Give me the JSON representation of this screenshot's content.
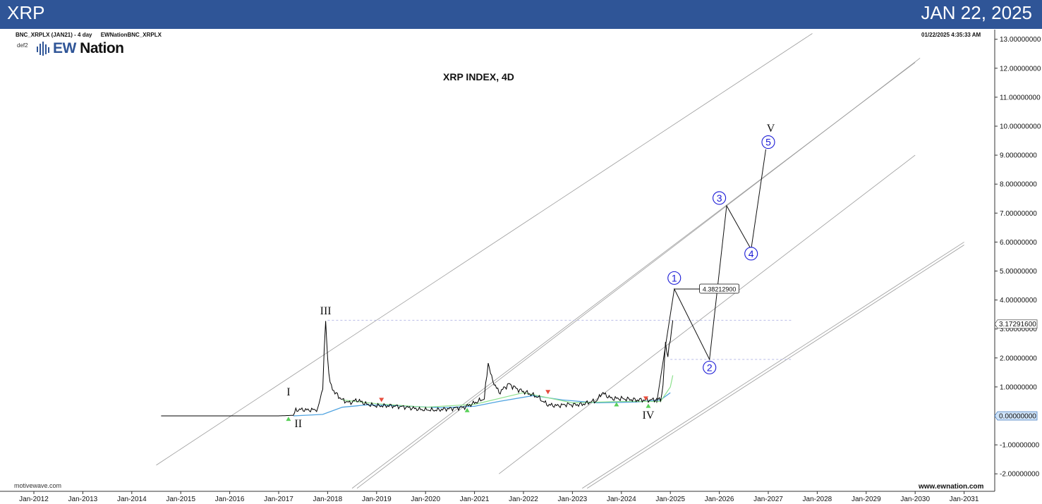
{
  "banner": {
    "symbol": "XRP",
    "date": "JAN 22, 2025",
    "color": "#2f5597"
  },
  "header": {
    "symbol_line": "BNC_XRPLX (JAN21) - 4 day",
    "source": "EWNationBNC_XRPLX",
    "def": "def2",
    "timestamp": "01/22/2025 4:35:33 AM",
    "logo_text": "EW",
    "logo_text2": "Nation"
  },
  "watermark": {
    "left": "motivewave.com",
    "right": "www.ewnation.com"
  },
  "chart_data": {
    "type": "line",
    "title": "XRP INDEX, 4D",
    "ylim": [
      -2.5,
      13.2
    ],
    "y_ticks": [
      "13.00000000",
      "12.00000000",
      "11.00000000",
      "10.00000000",
      "9.00000000",
      "8.00000000",
      "7.00000000",
      "6.00000000",
      "5.00000000",
      "4.00000000",
      "3.00000000",
      "2.00000000",
      "1.00000000",
      "0.00000000",
      "-1.00000000",
      "-2.00000000"
    ],
    "y_tick_values": [
      13,
      12,
      11,
      10,
      9,
      8,
      7,
      6,
      5,
      4,
      3,
      2,
      1,
      0,
      -1,
      -2
    ],
    "x_ticks": [
      "Jan-2012",
      "Jan-2013",
      "Jan-2014",
      "Jan-2015",
      "Jan-2016",
      "Jan-2017",
      "Jan-2018",
      "Jan-2019",
      "Jan-2020",
      "Jan-2021",
      "Jan-2022",
      "Jan-2023",
      "Jan-2024",
      "Jan-2025",
      "Jan-2026",
      "Jan-2027",
      "Jan-2028",
      "Jan-2029",
      "Jan-2030",
      "Jan-2031"
    ],
    "x_tick_years": [
      2012,
      2013,
      2014,
      2015,
      2016,
      2017,
      2018,
      2019,
      2020,
      2021,
      2022,
      2023,
      2024,
      2025,
      2026,
      2027,
      2028,
      2029,
      2030,
      2031
    ],
    "price_series": {
      "color": "#000000",
      "x": [
        2014.6,
        2015.5,
        2016.5,
        2017.0,
        2017.3,
        2017.35,
        2017.45,
        2017.6,
        2017.8,
        2017.9,
        2017.96,
        2018.0,
        2018.05,
        2018.15,
        2018.3,
        2018.45,
        2018.6,
        2018.8,
        2019.0,
        2019.3,
        2019.6,
        2019.9,
        2020.2,
        2020.5,
        2020.8,
        2021.0,
        2021.2,
        2021.28,
        2021.35,
        2021.5,
        2021.7,
        2021.9,
        2022.1,
        2022.3,
        2022.4,
        2022.5,
        2022.7,
        2022.9,
        2023.0,
        2023.2,
        2023.4,
        2023.5,
        2023.6,
        2023.8,
        2024.0,
        2024.3,
        2024.6,
        2024.8,
        2024.85,
        2024.9,
        2024.95,
        2025.0,
        2025.05
      ],
      "y": [
        0,
        0,
        0,
        0,
        0.02,
        0.2,
        0.22,
        0.2,
        0.22,
        1.0,
        3.3,
        2.0,
        1.1,
        0.8,
        0.55,
        0.45,
        0.55,
        0.4,
        0.35,
        0.35,
        0.3,
        0.22,
        0.2,
        0.25,
        0.3,
        0.45,
        0.6,
        1.85,
        1.3,
        0.8,
        1.1,
        0.9,
        0.78,
        0.65,
        0.5,
        0.38,
        0.35,
        0.4,
        0.38,
        0.4,
        0.5,
        0.52,
        0.8,
        0.6,
        0.6,
        0.55,
        0.55,
        0.58,
        1.0,
        2.5,
        2.1,
        2.6,
        3.3
      ]
    },
    "ma_series": {
      "color": "#4fa3e0",
      "x": [
        2017.3,
        2017.9,
        2018.3,
        2018.8,
        2019.5,
        2020.3,
        2021.0,
        2021.5,
        2022.2,
        2022.8,
        2023.5,
        2024.3,
        2024.8,
        2025.0
      ],
      "y": [
        0,
        0.05,
        0.3,
        0.38,
        0.35,
        0.28,
        0.33,
        0.5,
        0.7,
        0.55,
        0.45,
        0.48,
        0.55,
        0.8
      ]
    },
    "green_series": {
      "color": "#8de08d",
      "x": [
        2018.3,
        2019.0,
        2020.0,
        2021.0,
        2022.0,
        2023.0,
        2024.0,
        2024.8,
        2025.0,
        2025.05
      ],
      "y": [
        0.55,
        0.42,
        0.3,
        0.4,
        0.8,
        0.45,
        0.5,
        0.5,
        1.0,
        1.4
      ]
    },
    "projection": {
      "color": "#111111",
      "x": [
        2024.72,
        2025.08,
        2025.8,
        2026.15,
        2026.65,
        2026.95,
        2027.1
      ],
      "y": [
        0.45,
        4.38,
        1.95,
        7.25,
        5.75,
        9.2,
        9.2
      ]
    },
    "trend_channel_lines": [
      {
        "x": [
          2014.5,
          2027.9
        ],
        "y": [
          -1.7,
          13.2
        ]
      },
      {
        "x": [
          2018.5,
          2030.0
        ],
        "y": [
          -2.5,
          12.2
        ]
      },
      {
        "x": [
          2018.6,
          2030.1
        ],
        "y": [
          -2.5,
          12.35
        ]
      },
      {
        "x": [
          2021.5,
          2030.0
        ],
        "y": [
          -2.0,
          9.0
        ]
      },
      {
        "x": [
          2023.2,
          2031.0
        ],
        "y": [
          -2.5,
          6.0
        ]
      },
      {
        "x": [
          2023.3,
          2031.0
        ],
        "y": [
          -2.5,
          5.9
        ]
      }
    ],
    "reference_levels": [
      {
        "value": 3.3,
        "x": [
          2018.0,
          2027.5
        ]
      },
      {
        "value": 1.95,
        "x": [
          2025.0,
          2027.5
        ]
      }
    ],
    "price_labels": [
      {
        "label": "4.38212900",
        "value": 4.38,
        "x": 2026.0,
        "style": "inline"
      },
      {
        "label": "3.17291600",
        "value": 3.17,
        "style": "axis"
      },
      {
        "label": "0.00000000",
        "value": 0.0,
        "style": "axis-highlight"
      }
    ],
    "wave_labels": [
      {
        "label": "I",
        "x": 2017.2,
        "y": 0.7,
        "style": "roman"
      },
      {
        "label": "II",
        "x": 2017.4,
        "y": -0.15,
        "style": "roman-below"
      },
      {
        "label": "III",
        "x": 2017.96,
        "y": 3.5,
        "style": "roman"
      },
      {
        "label": "IV",
        "x": 2024.55,
        "y": 0.15,
        "style": "roman-below"
      },
      {
        "label": "V",
        "x": 2027.05,
        "y": 9.8,
        "style": "roman"
      },
      {
        "label": "1",
        "x": 2025.08,
        "y": 4.76,
        "style": "circle"
      },
      {
        "label": "2",
        "x": 2025.8,
        "y": 1.67,
        "style": "circle"
      },
      {
        "label": "3",
        "x": 2026.0,
        "y": 7.52,
        "style": "circle"
      },
      {
        "label": "4",
        "x": 2026.65,
        "y": 5.6,
        "style": "circle"
      },
      {
        "label": "5",
        "x": 2027.0,
        "y": 9.45,
        "style": "circle"
      }
    ],
    "markers": [
      {
        "x": 2017.2,
        "y": -0.1,
        "dir": "up",
        "color": "#58d058"
      },
      {
        "x": 2019.1,
        "y": 0.55,
        "dir": "down",
        "color": "#e74c3c"
      },
      {
        "x": 2020.85,
        "y": 0.2,
        "dir": "up",
        "color": "#58d058"
      },
      {
        "x": 2022.5,
        "y": 0.82,
        "dir": "down",
        "color": "#e74c3c"
      },
      {
        "x": 2023.9,
        "y": 0.4,
        "dir": "up",
        "color": "#58d058"
      },
      {
        "x": 2024.5,
        "y": 0.6,
        "dir": "down",
        "color": "#e74c3c"
      },
      {
        "x": 2024.55,
        "y": 0.35,
        "dir": "up",
        "color": "#58d058"
      }
    ],
    "colors": {
      "wave_circle": "#1a1ad6",
      "grid_dash": "#b9bce8",
      "channel": "#9a9a9a"
    }
  }
}
